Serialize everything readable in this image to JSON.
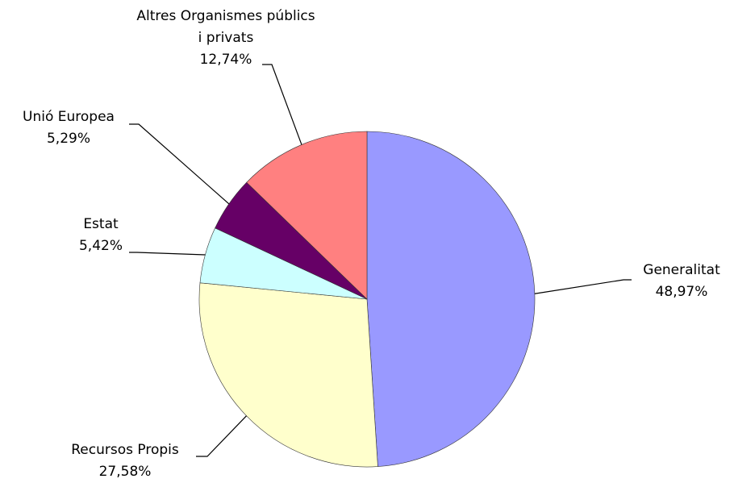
{
  "chart_data": {
    "type": "pie",
    "categories": [
      "Generalitat",
      "Recursos Propis",
      "Estat",
      "Unió Europea",
      "Altres Organismes públics i privats"
    ],
    "values": [
      48.97,
      27.58,
      5.42,
      5.29,
      12.74
    ],
    "value_labels": [
      "48,97%",
      "27,58%",
      "5,42%",
      "5,29%",
      "12,74%"
    ],
    "colors": [
      "#9999ff",
      "#ffffcc",
      "#ccffff",
      "#660066",
      "#ff8080"
    ]
  }
}
